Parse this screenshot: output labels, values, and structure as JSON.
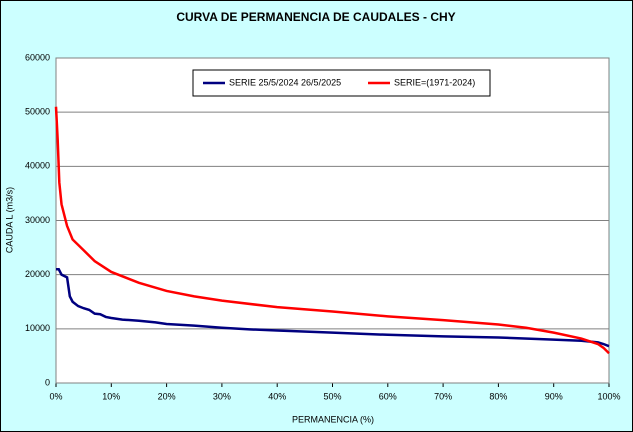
{
  "chart_data": {
    "type": "line",
    "title": "CURVA DE PERMANENCIA DE CAUDALES - CHY",
    "x_label": "PERMANENCIA (%)",
    "y_label": "CAUDA L (m3/s)",
    "xlim": [
      0,
      100
    ],
    "xticks": [
      {
        "value": 0,
        "label": "0%"
      },
      {
        "value": 10,
        "label": "10%"
      },
      {
        "value": 20,
        "label": "20%"
      },
      {
        "value": 30,
        "label": "30%"
      },
      {
        "value": 40,
        "label": "40%"
      },
      {
        "value": 50,
        "label": "50%"
      },
      {
        "value": 60,
        "label": "60%"
      },
      {
        "value": 70,
        "label": "70%"
      },
      {
        "value": 80,
        "label": "80%"
      },
      {
        "value": 90,
        "label": "90%"
      },
      {
        "value": 100,
        "label": "100%"
      }
    ],
    "ylim": [
      0,
      60000
    ],
    "yticks": [
      0,
      10000,
      20000,
      30000,
      40000,
      50000,
      60000
    ],
    "grid": true,
    "legend": "top",
    "series": [
      {
        "name": "SERIE 25/5/2024 26/5/2025",
        "color": "#000080",
        "x": [
          0,
          0.5,
          1,
          2,
          2.5,
          3,
          4,
          5,
          6,
          7,
          8,
          9,
          10,
          12,
          15,
          18,
          20,
          25,
          30,
          35,
          40,
          50,
          60,
          70,
          80,
          90,
          95,
          98,
          99,
          100
        ],
        "values": [
          21000,
          21000,
          20000,
          19500,
          16000,
          15000,
          14200,
          13800,
          13500,
          12800,
          12700,
          12200,
          12000,
          11700,
          11500,
          11200,
          10900,
          10600,
          10200,
          9900,
          9700,
          9300,
          8900,
          8600,
          8400,
          8000,
          7800,
          7500,
          7200,
          6800
        ]
      },
      {
        "name": "SERIE=(1971-2024)",
        "color": "#ff0000",
        "x": [
          0,
          0.3,
          0.6,
          1,
          2,
          3,
          5,
          7,
          10,
          15,
          20,
          25,
          30,
          40,
          50,
          60,
          70,
          80,
          85,
          90,
          95,
          98,
          99,
          100
        ],
        "values": [
          51000,
          45000,
          37000,
          33000,
          29000,
          26500,
          24500,
          22500,
          20500,
          18500,
          17000,
          16000,
          15200,
          14000,
          13200,
          12300,
          11600,
          10800,
          10200,
          9300,
          8200,
          7200,
          6500,
          5500
        ]
      }
    ]
  }
}
